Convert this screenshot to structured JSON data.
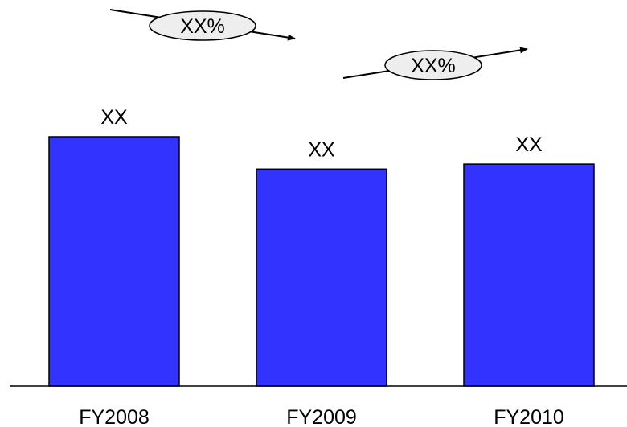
{
  "chart_data": {
    "type": "bar",
    "categories": [
      "FY2008",
      "FY2009",
      "FY2010"
    ],
    "values": [
      100,
      87,
      89
    ],
    "data_labels": [
      "XX",
      "XX",
      "XX"
    ],
    "growth_annotations": [
      {
        "label": "XX%",
        "from": "FY2008",
        "to": "FY2009"
      },
      {
        "label": "XX%",
        "from": "FY2009",
        "to": "FY2010"
      }
    ],
    "ylim": [
      0,
      100
    ],
    "grid": false,
    "legend": "none"
  },
  "colors": {
    "bar_fill": "#3333ff",
    "bar_stroke": "#000000",
    "bubble_fill": "#eeeeee",
    "axis": "#000000"
  }
}
